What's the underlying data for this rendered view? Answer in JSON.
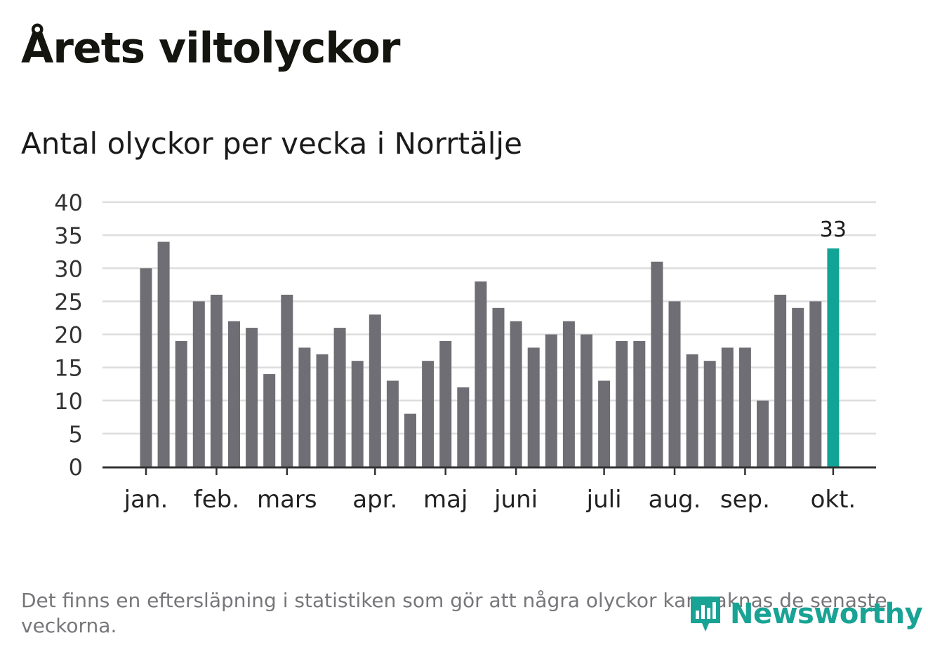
{
  "header": {
    "title": "Årets viltolyckor",
    "subtitle": "Antal olyckor per vecka i Norrtälje"
  },
  "footer": {
    "note": "Det finns en eftersläpning i statistiken som gör att några olyckor kan saknas de senaste veckorna.",
    "brand": "Newsworthy",
    "brand_icon": "newsworthy-logo-icon"
  },
  "colors": {
    "bar": "#6f6e74",
    "highlight": "#11a396",
    "grid": "#dddddd",
    "axis": "#333333",
    "brand": "#18a394"
  },
  "chart_data": {
    "type": "bar",
    "values": [
      30,
      34,
      19,
      25,
      26,
      22,
      21,
      14,
      26,
      18,
      17,
      21,
      16,
      23,
      13,
      8,
      16,
      19,
      12,
      28,
      24,
      22,
      18,
      20,
      22,
      20,
      13,
      19,
      19,
      31,
      25,
      17,
      16,
      18,
      18,
      10,
      26,
      24,
      25,
      33
    ],
    "highlight_index": 39,
    "highlight_label": "33",
    "ylim": [
      0,
      40
    ],
    "yticks": [
      0,
      5,
      10,
      15,
      20,
      25,
      30,
      35,
      40
    ],
    "month_labels": [
      {
        "label": "jan.",
        "bar_index": 0
      },
      {
        "label": "feb.",
        "bar_index": 4
      },
      {
        "label": "mars",
        "bar_index": 8
      },
      {
        "label": "apr.",
        "bar_index": 13
      },
      {
        "label": "maj",
        "bar_index": 17
      },
      {
        "label": "juni",
        "bar_index": 21
      },
      {
        "label": "juli",
        "bar_index": 26
      },
      {
        "label": "aug.",
        "bar_index": 30
      },
      {
        "label": "sep.",
        "bar_index": 34
      },
      {
        "label": "okt.",
        "bar_index": 39
      }
    ],
    "grid": true,
    "legend": "none"
  }
}
